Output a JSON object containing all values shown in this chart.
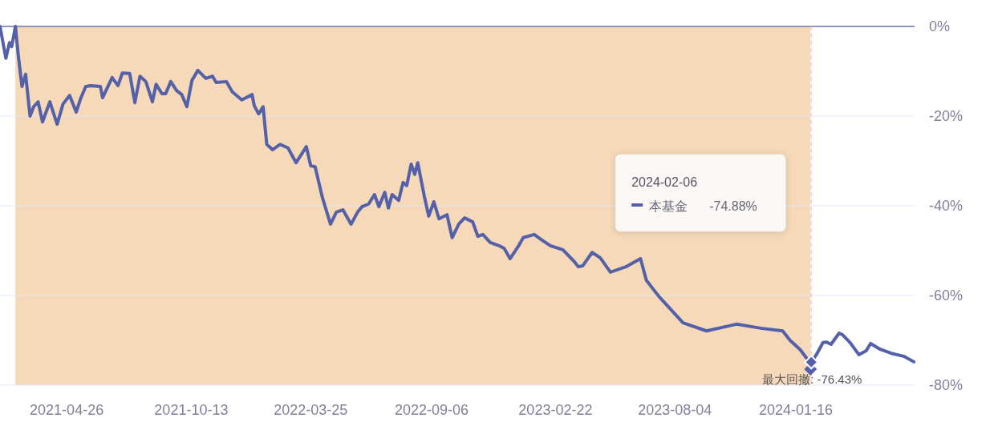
{
  "chart_data": {
    "type": "line",
    "xlim": [
      "2021-01-25",
      "2024-06-26"
    ],
    "xticks": [
      {
        "value": "2021-04-26",
        "label": "2021-04-26"
      },
      {
        "value": "2021-10-13",
        "label": "2021-10-13"
      },
      {
        "value": "2022-03-25",
        "label": "2022-03-25"
      },
      {
        "value": "2022-09-06",
        "label": "2022-09-06"
      },
      {
        "value": "2023-02-22",
        "label": "2023-02-22"
      },
      {
        "value": "2023-08-04",
        "label": "2023-08-04"
      },
      {
        "value": "2024-01-16",
        "label": "2024-01-16"
      }
    ],
    "ylim": [
      -80,
      0
    ],
    "yticks": [
      {
        "value": -80,
        "label": "-80%"
      },
      {
        "value": -60,
        "label": "-60%"
      },
      {
        "value": -40,
        "label": "-40%"
      },
      {
        "value": -20,
        "label": "-20%"
      },
      {
        "value": 0,
        "label": "0%"
      }
    ],
    "grid": "y",
    "line_style": "solid",
    "series": [
      {
        "name": "本基金",
        "color": "#5461a8",
        "x": [
          "2021-01-25",
          "2021-02-02",
          "2021-02-07",
          "2021-02-10",
          "2021-02-15",
          "2021-02-19",
          "2021-02-24",
          "2021-03-01",
          "2021-03-07",
          "2021-03-12",
          "2021-03-18",
          "2021-03-24",
          "2021-04-03",
          "2021-04-13",
          "2021-04-21",
          "2021-04-30",
          "2021-05-09",
          "2021-05-15",
          "2021-05-22",
          "2021-05-29",
          "2021-06-11",
          "2021-06-14",
          "2021-06-27",
          "2021-07-05",
          "2021-07-11",
          "2021-07-21",
          "2021-07-28",
          "2021-08-04",
          "2021-08-12",
          "2021-08-21",
          "2021-08-26",
          "2021-09-03",
          "2021-09-08",
          "2021-09-15",
          "2021-09-23",
          "2021-09-30",
          "2021-10-07",
          "2021-10-14",
          "2021-10-22",
          "2021-11-02",
          "2021-11-11",
          "2021-11-16",
          "2021-11-30",
          "2021-12-08",
          "2021-12-21",
          "2022-01-04",
          "2022-01-07",
          "2022-01-13",
          "2022-01-19",
          "2022-01-24",
          "2022-02-01",
          "2022-02-11",
          "2022-02-22",
          "2022-03-05",
          "2022-03-19",
          "2022-03-25",
          "2022-03-31",
          "2022-04-10",
          "2022-04-21",
          "2022-04-29",
          "2022-05-08",
          "2022-05-19",
          "2022-05-28",
          "2022-06-03",
          "2022-06-12",
          "2022-06-20",
          "2022-06-26",
          "2022-07-04",
          "2022-07-09",
          "2022-07-14",
          "2022-07-23",
          "2022-07-29",
          "2022-08-03",
          "2022-08-09",
          "2022-08-14",
          "2022-08-18",
          "2022-08-27",
          "2022-09-02",
          "2022-09-09",
          "2022-09-16",
          "2022-09-27",
          "2022-10-04",
          "2022-10-13",
          "2022-10-21",
          "2022-11-01",
          "2022-11-08",
          "2022-11-15",
          "2022-11-25",
          "2022-12-07",
          "2022-12-14",
          "2022-12-22",
          "2023-01-02",
          "2023-01-09",
          "2023-01-24",
          "2023-02-04",
          "2023-02-15",
          "2023-03-04",
          "2023-03-20",
          "2023-03-25",
          "2023-03-31",
          "2023-04-13",
          "2023-04-24",
          "2023-05-08",
          "2023-05-29",
          "2023-06-18",
          "2023-06-26",
          "2023-07-13",
          "2023-08-15",
          "2023-09-16",
          "2023-10-27",
          "2023-11-29",
          "2023-12-29",
          "2024-01-08",
          "2024-01-22",
          "2024-02-02",
          "2024-02-05",
          "2024-02-06",
          "2024-02-13",
          "2024-02-22",
          "2024-02-27",
          "2024-03-04",
          "2024-03-15",
          "2024-03-20",
          "2024-03-30",
          "2024-04-11",
          "2024-04-21",
          "2024-04-27",
          "2024-05-10",
          "2024-05-25",
          "2024-06-12",
          "2024-06-25"
        ],
        "values": [
          0,
          -7.1,
          -3.6,
          -4.5,
          0,
          -6.6,
          -13.4,
          -10.7,
          -20,
          -17.9,
          -16.8,
          -21.3,
          -16.8,
          -21.8,
          -17.3,
          -15.4,
          -19.1,
          -16.1,
          -13.4,
          -13.2,
          -13.4,
          -15.9,
          -11.4,
          -13.2,
          -10.4,
          -10.5,
          -17,
          -11.1,
          -12.3,
          -16.8,
          -12.9,
          -15,
          -15,
          -12.3,
          -14.3,
          -15.2,
          -17.9,
          -12,
          -9.8,
          -11.6,
          -11.1,
          -12.5,
          -12.3,
          -14.6,
          -16.4,
          -15.2,
          -17.7,
          -19.5,
          -17.9,
          -26.3,
          -27.5,
          -26.3,
          -27.1,
          -30.4,
          -26.8,
          -31.1,
          -31.3,
          -38.2,
          -44.1,
          -41.4,
          -40.9,
          -44.1,
          -41.4,
          -40.2,
          -39.6,
          -37.5,
          -40.2,
          -37,
          -40.5,
          -37.5,
          -38.8,
          -34.8,
          -35.5,
          -30.7,
          -33,
          -30.4,
          -37.9,
          -42.3,
          -39.1,
          -42.9,
          -42,
          -47.1,
          -44.1,
          -42.7,
          -43.6,
          -46.8,
          -46.4,
          -48.2,
          -48.9,
          -49.5,
          -51.8,
          -49.1,
          -47.1,
          -46.4,
          -47.7,
          -48.9,
          -49.8,
          -52.5,
          -53.6,
          -53.4,
          -50.4,
          -51.6,
          -54.8,
          -53.6,
          -51.8,
          -56.6,
          -60.2,
          -66.1,
          -67.9,
          -66.4,
          -67.3,
          -67.9,
          -70,
          -72.1,
          -74.5,
          -76.43,
          -74.88,
          -73.2,
          -70.5,
          -70.4,
          -70.9,
          -68.4,
          -68.8,
          -70.5,
          -73.2,
          -72.3,
          -70.7,
          -72,
          -72.9,
          -73.6,
          -74.8
        ]
      }
    ],
    "bands": [
      {
        "axis": "x",
        "from": "2021-02-15",
        "to": "2024-02-05",
        "color": "#f5d9b9"
      }
    ],
    "ref_lines": [
      {
        "axis": "x",
        "value": "2024-02-06",
        "color": "#f0b9b9",
        "line_style": "dashed"
      }
    ],
    "annotations": [
      "2024-02-06",
      "-74.88%",
      {
        "text": "最大回撤: -76.43%",
        "x": "2024-02-05",
        "y": -76.43
      }
    ]
  }
}
